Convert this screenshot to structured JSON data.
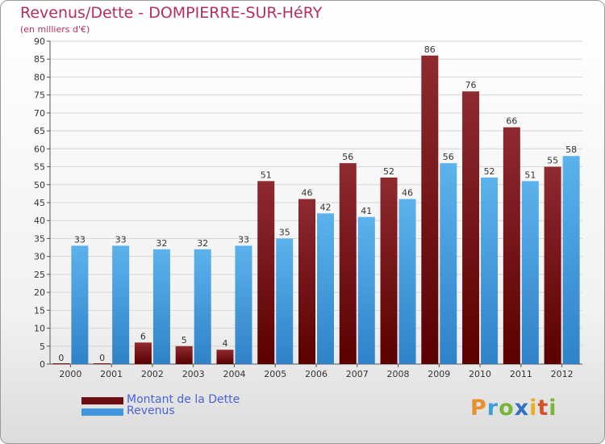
{
  "header": {
    "title": "Revenus/Dette - DOMPIERRE-SUR-HéRY",
    "subtitle": "(en milliers d'€)"
  },
  "chart_data": {
    "type": "bar",
    "title": "Revenus/Dette - DOMPIERRE-SUR-HéRY",
    "subtitle": "(en milliers d'€)",
    "categories": [
      "2000",
      "2001",
      "2002",
      "2003",
      "2004",
      "2005",
      "2006",
      "2007",
      "2008",
      "2009",
      "2010",
      "2011",
      "2012"
    ],
    "series": [
      {
        "name": "Montant de la Dette",
        "color": "#6b0f12",
        "values": [
          0,
          0,
          6,
          5,
          4,
          51,
          46,
          56,
          52,
          86,
          76,
          66,
          55
        ]
      },
      {
        "name": "Revenus",
        "color": "#3f96dc",
        "values": [
          33,
          33,
          32,
          32,
          33,
          35,
          42,
          41,
          46,
          56,
          52,
          51,
          58
        ]
      }
    ],
    "ylim": [
      0,
      90
    ],
    "yticks": [
      0,
      5,
      10,
      15,
      20,
      25,
      30,
      35,
      40,
      45,
      50,
      55,
      60,
      65,
      70,
      75,
      80,
      85,
      90
    ],
    "grid": true,
    "legend": "bottom-left",
    "data_labels": true
  },
  "logo": {
    "letters": [
      "P",
      "r",
      "o",
      "x",
      "i",
      "t",
      "i"
    ],
    "colors": [
      "#e8902a",
      "#3aa0d8",
      "#7ab53a",
      "#2f6fc4",
      "#e8b020",
      "#d8502a",
      "#7ab53a"
    ]
  }
}
